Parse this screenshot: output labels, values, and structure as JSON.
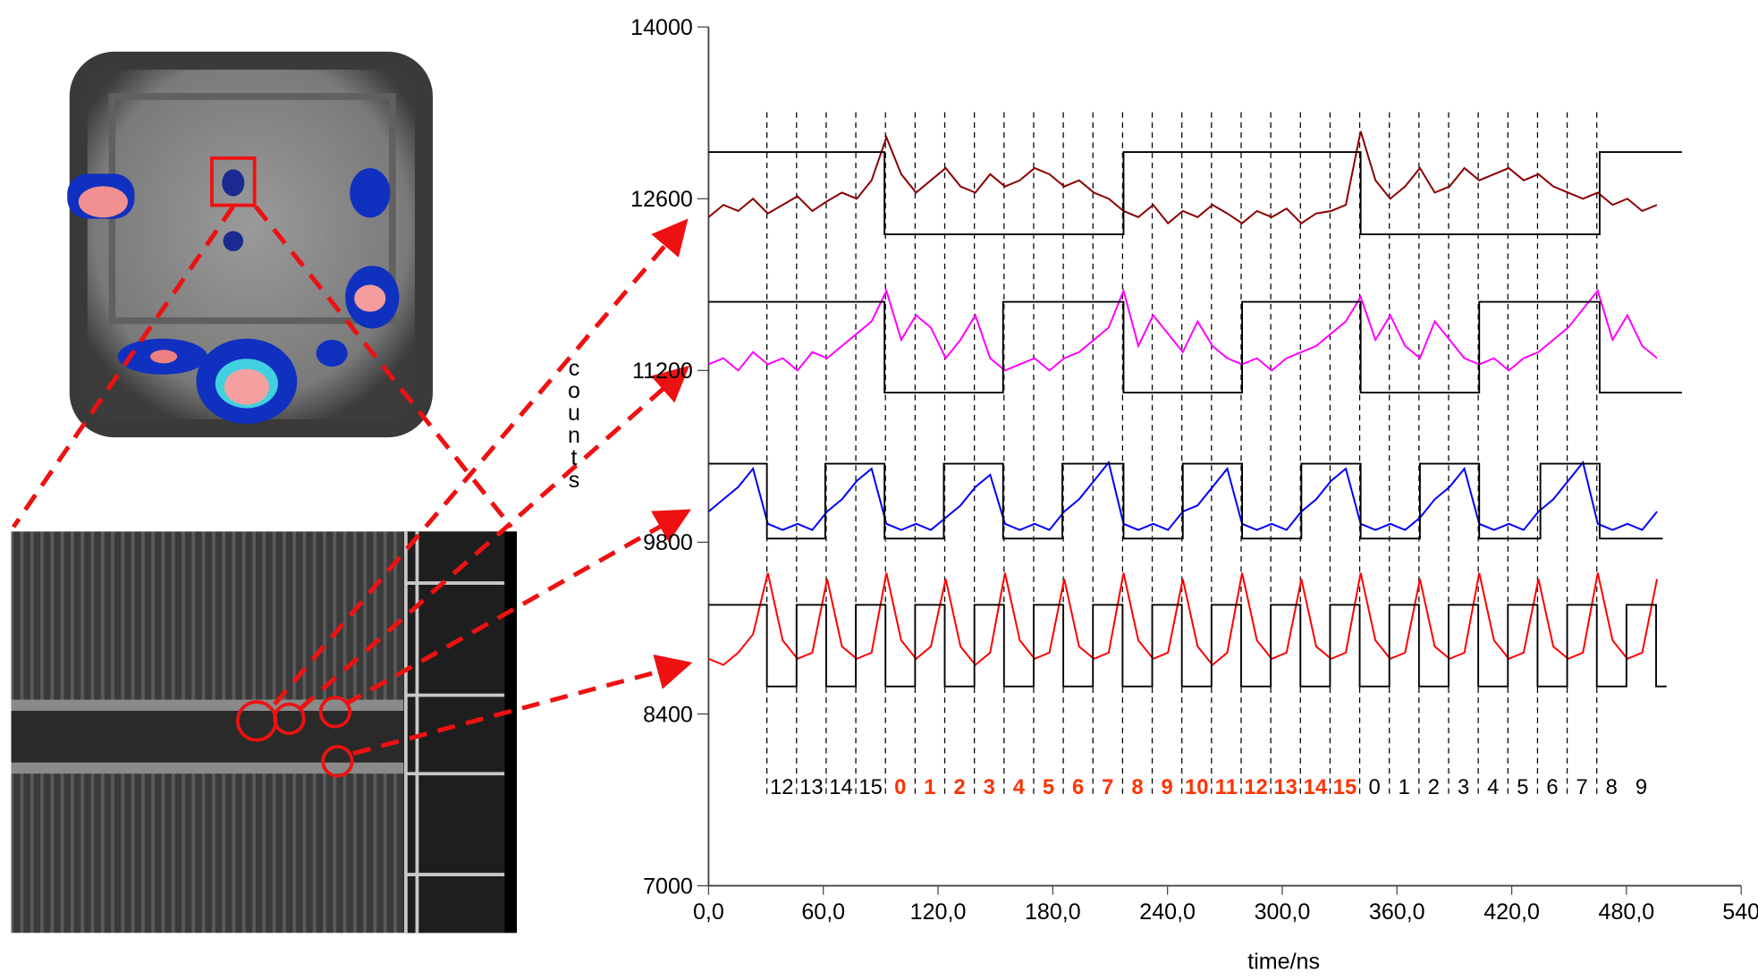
{
  "chart_data": {
    "type": "line",
    "ylabel": "counts",
    "xlabel": "time/ns",
    "xlim": [
      0,
      540
    ],
    "ylim": [
      7000,
      14000
    ],
    "xticks": [
      {
        "value": 0,
        "label": "0,0"
      },
      {
        "value": 60,
        "label": "60,0"
      },
      {
        "value": 120,
        "label": "120,0"
      },
      {
        "value": 180,
        "label": "180,0"
      },
      {
        "value": 240,
        "label": "240,0"
      },
      {
        "value": 300,
        "label": "300,0"
      },
      {
        "value": 360,
        "label": "360,0"
      },
      {
        "value": 420,
        "label": "420,0"
      },
      {
        "value": 480,
        "label": "480,0"
      },
      540
    ],
    "yticks": [
      7000,
      8400,
      9800,
      11200,
      12600,
      14000
    ],
    "x": [
      0,
      7.75,
      15.5,
      23.25,
      31,
      38.75,
      46.5,
      54.25,
      62,
      69.75,
      77.5,
      85.25,
      93,
      100.75,
      108.5,
      116.25,
      124,
      131.75,
      139.5,
      147.25,
      155,
      162.75,
      170.5,
      178.25,
      186,
      193.75,
      201.5,
      209.25,
      217,
      224.75,
      232.5,
      240.25,
      248,
      255.75,
      263.5,
      271.25,
      279,
      286.75,
      294.5,
      302.25,
      310,
      317.75,
      325.5,
      333.25,
      341,
      348.75,
      356.5,
      364.25,
      372,
      379.75,
      387.5,
      395.25,
      403,
      410.75,
      418.5,
      426.25,
      434,
      441.75,
      449.5,
      457.25,
      465,
      472.75,
      480.5,
      488.25,
      496
    ],
    "series": [
      {
        "color": "#8b0000",
        "values": [
          12450,
          12550,
          12500,
          12600,
          12480,
          12550,
          12620,
          12500,
          12580,
          12650,
          12600,
          12750,
          13100,
          12800,
          12650,
          12750,
          12850,
          12700,
          12650,
          12800,
          12700,
          12750,
          12850,
          12800,
          12700,
          12750,
          12650,
          12600,
          12500,
          12450,
          12550,
          12400,
          12500,
          12450,
          12550,
          12480,
          12400,
          12500,
          12450,
          12520,
          12400,
          12480,
          12500,
          12550,
          13150,
          12750,
          12600,
          12700,
          12850,
          12650,
          12700,
          12850,
          12750,
          12800,
          12850,
          12750,
          12800,
          12700,
          12650,
          12600,
          12650,
          12550,
          12600,
          12500,
          12550
        ]
      },
      {
        "color": "#ff00ff",
        "values": [
          11250,
          11300,
          11200,
          11350,
          11250,
          11300,
          11200,
          11350,
          11300,
          11400,
          11500,
          11600,
          11850,
          11450,
          11650,
          11550,
          11300,
          11450,
          11650,
          11300,
          11200,
          11250,
          11300,
          11200,
          11300,
          11350,
          11450,
          11550,
          11850,
          11400,
          11650,
          11500,
          11350,
          11600,
          11400,
          11300,
          11250,
          11300,
          11200,
          11300,
          11350,
          11400,
          11500,
          11600,
          11800,
          11450,
          11650,
          11400,
          11300,
          11600,
          11450,
          11300,
          11250,
          11300,
          11200,
          11300,
          11350,
          11450,
          11550,
          11700,
          11850,
          11450,
          11650,
          11400,
          11300
        ]
      },
      {
        "color": "#0000ff",
        "values": [
          10050,
          10150,
          10250,
          10400,
          9950,
          9900,
          9950,
          9900,
          10050,
          10150,
          10300,
          10400,
          9950,
          9900,
          9950,
          9900,
          10000,
          10100,
          10250,
          10350,
          9950,
          9900,
          9950,
          9900,
          10050,
          10150,
          10300,
          10450,
          9950,
          9900,
          9950,
          9900,
          10050,
          10100,
          10250,
          10400,
          9950,
          9900,
          9950,
          9900,
          10050,
          10150,
          10300,
          10400,
          9950,
          9900,
          9950,
          9900,
          10000,
          10150,
          10250,
          10400,
          9950,
          9900,
          9950,
          9900,
          10050,
          10150,
          10300,
          10450,
          9950,
          9900,
          9950,
          9900,
          10050
        ]
      },
      {
        "color": "#ff0000",
        "values": [
          8850,
          8800,
          8900,
          9050,
          9550,
          9000,
          8850,
          8900,
          9500,
          8950,
          8850,
          8900,
          9550,
          9000,
          8850,
          8950,
          9500,
          8950,
          8800,
          8900,
          9550,
          9000,
          8850,
          8900,
          9500,
          8950,
          8850,
          8900,
          9550,
          9000,
          8850,
          8900,
          9500,
          8950,
          8800,
          8900,
          9550,
          9000,
          8850,
          8900,
          9500,
          8950,
          8850,
          8900,
          9550,
          9000,
          8850,
          8900,
          9500,
          8950,
          8850,
          8900,
          9550,
          9000,
          8850,
          8900,
          9500,
          8950,
          8850,
          8900,
          9550,
          9000,
          8850,
          8900,
          9500
        ]
      }
    ],
    "square_waves": [
      {
        "color": "#000000",
        "x": [
          0,
          92,
          92,
          217,
          217,
          341,
          341,
          466,
          466,
          509
        ],
        "values": [
          12980,
          12980,
          12310,
          12310,
          12980,
          12980,
          12310,
          12310,
          12980,
          12980
        ]
      },
      {
        "color": "#000000",
        "x": [
          0,
          92,
          92,
          154,
          154,
          217,
          217,
          279,
          279,
          341,
          341,
          403,
          403,
          466,
          466,
          509
        ],
        "values": [
          11760,
          11760,
          11020,
          11020,
          11760,
          11760,
          11020,
          11020,
          11760,
          11760,
          11020,
          11020,
          11760,
          11760,
          11020,
          11020
        ]
      },
      {
        "color": "#000000",
        "x": [
          0,
          30.5,
          30.5,
          61,
          61,
          92,
          92,
          123,
          123,
          154,
          154,
          185,
          185,
          217,
          217,
          248,
          248,
          279,
          279,
          310,
          310,
          341,
          341,
          372,
          372,
          403,
          403,
          435,
          435,
          466,
          466,
          499
        ],
        "values": [
          10440,
          10440,
          9830,
          9830,
          10440,
          10440,
          9830,
          9830,
          10440,
          10440,
          9830,
          9830,
          10440,
          10440,
          9830,
          9830,
          10440,
          10440,
          9830,
          9830,
          10440,
          10440,
          9830,
          9830,
          10440,
          10440,
          9830,
          9830,
          10440,
          10440,
          9830,
          9830
        ]
      },
      {
        "color": "#000000",
        "x": [
          0,
          30.5,
          30.5,
          46,
          46,
          61.5,
          61.5,
          77,
          77,
          92.5,
          92.5,
          108,
          108,
          123.5,
          123.5,
          139,
          139,
          154.5,
          154.5,
          170,
          170,
          185.5,
          185.5,
          201,
          201,
          216.5,
          216.5,
          232,
          232,
          247.5,
          247.5,
          263,
          263,
          278.5,
          278.5,
          294,
          294,
          309.5,
          309.5,
          325,
          325,
          340.5,
          340.5,
          356,
          356,
          371.5,
          371.5,
          387,
          387,
          402.5,
          402.5,
          418,
          418,
          433.5,
          433.5,
          449,
          449,
          464.5,
          464.5,
          480,
          480,
          495.5,
          495.5,
          501
        ],
        "values": [
          9290,
          9290,
          8625,
          8625,
          9290,
          9290,
          8625,
          8625,
          9290,
          9290,
          8625,
          8625,
          9290,
          9290,
          8625,
          8625,
          9290,
          9290,
          8625,
          8625,
          9290,
          9290,
          8625,
          8625,
          9290,
          9290,
          8625,
          8625,
          9290,
          9290,
          8625,
          8625,
          9290,
          9290,
          8625,
          8625,
          9290,
          9290,
          8625,
          8625,
          9290,
          9290,
          8625,
          8625,
          9290,
          9290,
          8625,
          8625,
          9290,
          9290,
          8625,
          8625,
          9290,
          9290,
          8625,
          8625,
          9290,
          9290,
          8625,
          8625,
          9290,
          9290,
          8625,
          8625
        ]
      }
    ],
    "vlines": [
      30.5,
      46,
      61.5,
      77,
      92.5,
      108,
      123.5,
      139,
      154.5,
      170,
      185.5,
      201,
      216.5,
      232,
      247.5,
      263,
      278.5,
      294,
      309.5,
      325,
      340.5,
      356,
      371.5,
      387,
      402.5,
      418,
      433.5,
      449,
      464.5
    ],
    "bit_labels": [
      "12",
      "13",
      "14",
      "15",
      "0",
      "1",
      "2",
      "3",
      "4",
      "5",
      "6",
      "7",
      "8",
      "9",
      "10",
      "11",
      "12",
      "13",
      "14",
      "15",
      "0",
      "1",
      "2",
      "3",
      "4",
      "5",
      "6",
      "7",
      "8",
      "9"
    ],
    "bit_label_colors": [
      "#000000",
      "#000000",
      "#000000",
      "#000000",
      "#ff3300",
      "#ff3300",
      "#ff3300",
      "#ff3300",
      "#ff3300",
      "#ff3300",
      "#ff3300",
      "#ff3300",
      "#ff3300",
      "#ff3300",
      "#ff3300",
      "#ff3300",
      "#ff3300",
      "#ff3300",
      "#ff3300",
      "#ff3300",
      "#000000",
      "#000000",
      "#000000",
      "#000000",
      "#000000",
      "#000000",
      "#000000",
      "#000000",
      "#000000",
      "#000000"
    ]
  }
}
